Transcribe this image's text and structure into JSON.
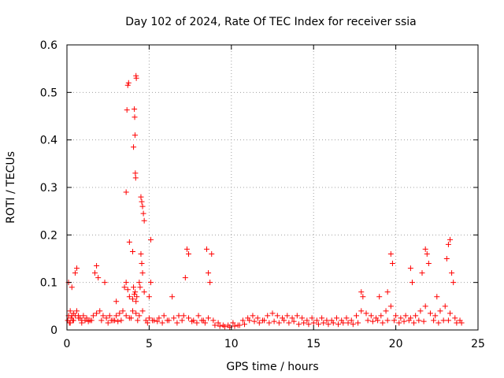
{
  "chart_data": {
    "type": "scatter",
    "title": "Day 102 of 2024, Rate Of TEC Index for receiver ssia",
    "xlabel": "GPS time / hours",
    "ylabel": "ROTI / TECUs",
    "xlim": [
      0,
      25
    ],
    "ylim": [
      0,
      0.6
    ],
    "x_ticks": [
      0,
      5,
      10,
      15,
      20,
      25
    ],
    "x_tick_labels": [
      "0",
      "5",
      "10",
      "15",
      "20",
      "25"
    ],
    "y_ticks": [
      0,
      0.1,
      0.2,
      0.3,
      0.4,
      0.5,
      0.6
    ],
    "y_tick_labels": [
      "0",
      "0.1",
      "0.2",
      "0.3",
      "0.4",
      "0.5",
      "0.6"
    ],
    "grid": true,
    "marker": "+",
    "color": "#ff0000",
    "x": [
      0.05,
      0.1,
      0.15,
      0.2,
      0.25,
      0.3,
      0.35,
      0.4,
      0.5,
      0.6,
      0.7,
      0.8,
      0.9,
      1.0,
      1.2,
      1.4,
      1.6,
      1.8,
      2.0,
      2.2,
      2.4,
      2.6,
      2.8,
      3.0,
      3.2,
      3.4,
      3.6,
      3.8,
      4.0,
      4.2,
      4.4,
      4.6,
      4.8,
      5.0,
      5.3,
      5.6,
      5.9,
      6.2,
      6.5,
      6.8,
      7.1,
      7.4,
      7.7,
      8.0,
      8.3,
      8.6,
      8.9,
      9.2,
      9.5,
      9.8,
      10.1,
      10.4,
      10.7,
      11.0,
      11.3,
      11.6,
      11.9,
      12.2,
      12.5,
      12.8,
      13.1,
      13.4,
      13.7,
      14.0,
      14.3,
      14.6,
      14.9,
      15.2,
      15.5,
      15.8,
      16.1,
      16.4,
      16.7,
      17.0,
      17.3,
      17.6,
      17.9,
      18.2,
      18.5,
      18.8,
      19.1,
      19.4,
      19.7,
      20.0,
      20.3,
      20.6,
      20.9,
      21.2,
      21.5,
      21.8,
      22.1,
      22.4,
      22.7,
      23.0,
      23.3,
      23.6,
      23.9,
      0.1,
      0.3,
      0.5,
      0.6,
      1.7,
      1.8,
      1.9,
      2.3,
      3.0,
      3.5,
      3.6,
      3.7,
      3.8,
      4.0,
      4.05,
      4.1,
      4.15,
      4.2,
      4.25,
      4.4,
      4.45,
      4.5,
      4.55,
      4.6,
      4.7,
      5.0,
      5.1,
      6.4,
      7.2,
      7.3,
      7.4,
      8.5,
      8.6,
      8.7,
      8.8,
      17.9,
      18.0,
      19.0,
      19.5,
      19.7,
      19.8,
      20.9,
      21.0,
      21.6,
      21.8,
      21.9,
      22.0,
      22.5,
      23.1,
      23.2,
      23.3,
      23.4,
      23.5,
      3.6,
      3.65,
      3.7,
      3.75,
      3.8,
      4.0,
      4.05,
      4.1,
      4.12,
      4.14,
      4.16,
      4.18,
      4.2,
      4.22,
      4.5,
      4.55,
      4.6,
      4.65,
      4.7,
      5.1,
      0.2,
      0.4,
      0.7,
      0.9,
      1.1,
      1.3,
      1.5,
      2.1,
      2.5,
      2.7,
      2.9,
      3.1,
      3.3,
      3.9,
      4.3,
      4.9,
      5.2,
      5.5,
      5.8,
      6.1,
      6.7,
      7.0,
      7.6,
      7.9,
      8.2,
      8.4,
      9.0,
      9.3,
      9.6,
      9.9,
      10.2,
      10.5,
      10.8,
      11.1,
      11.4,
      11.7,
      12.0,
      12.3,
      12.6,
      12.9,
      13.2,
      13.5,
      13.8,
      14.1,
      14.4,
      14.7,
      15.0,
      15.3,
      15.6,
      15.9,
      16.2,
      16.5,
      16.8,
      17.1,
      17.4,
      17.7,
      18.3,
      18.6,
      18.9,
      19.2,
      19.5,
      19.9,
      20.2,
      20.5,
      20.8,
      21.1,
      21.4,
      21.7,
      22.3,
      22.6,
      22.9,
      23.2,
      23.7,
      24.0
    ],
    "y": [
      0.02,
      0.03,
      0.015,
      0.04,
      0.025,
      0.03,
      0.02,
      0.035,
      0.03,
      0.04,
      0.03,
      0.025,
      0.02,
      0.03,
      0.025,
      0.02,
      0.03,
      0.035,
      0.04,
      0.03,
      0.025,
      0.03,
      0.02,
      0.03,
      0.035,
      0.04,
      0.03,
      0.025,
      0.04,
      0.035,
      0.03,
      0.04,
      0.02,
      0.025,
      0.02,
      0.025,
      0.03,
      0.02,
      0.025,
      0.03,
      0.03,
      0.025,
      0.02,
      0.03,
      0.02,
      0.025,
      0.02,
      0.015,
      0.01,
      0.01,
      0.015,
      0.01,
      0.02,
      0.025,
      0.03,
      0.025,
      0.02,
      0.03,
      0.035,
      0.03,
      0.025,
      0.03,
      0.025,
      0.03,
      0.025,
      0.02,
      0.025,
      0.02,
      0.025,
      0.02,
      0.02,
      0.025,
      0.02,
      0.025,
      0.02,
      0.03,
      0.04,
      0.035,
      0.03,
      0.025,
      0.03,
      0.04,
      0.05,
      0.03,
      0.025,
      0.03,
      0.025,
      0.03,
      0.04,
      0.05,
      0.035,
      0.03,
      0.04,
      0.05,
      0.035,
      0.025,
      0.02,
      0.1,
      0.09,
      0.12,
      0.13,
      0.12,
      0.135,
      0.11,
      0.1,
      0.06,
      0.09,
      0.1,
      0.085,
      0.07,
      0.065,
      0.09,
      0.075,
      0.08,
      0.06,
      0.07,
      0.1,
      0.09,
      0.16,
      0.14,
      0.12,
      0.08,
      0.07,
      0.1,
      0.07,
      0.11,
      0.17,
      0.16,
      0.17,
      0.12,
      0.1,
      0.16,
      0.08,
      0.07,
      0.07,
      0.08,
      0.16,
      0.14,
      0.13,
      0.1,
      0.12,
      0.17,
      0.16,
      0.14,
      0.07,
      0.15,
      0.18,
      0.19,
      0.12,
      0.1,
      0.29,
      0.463,
      0.515,
      0.52,
      0.185,
      0.165,
      0.385,
      0.465,
      0.448,
      0.41,
      0.33,
      0.32,
      0.535,
      0.53,
      0.28,
      0.27,
      0.26,
      0.245,
      0.23,
      0.19,
      0.015,
      0.02,
      0.025,
      0.015,
      0.02,
      0.018,
      0.02,
      0.02,
      0.015,
      0.02,
      0.02,
      0.018,
      0.02,
      0.025,
      0.02,
      0.015,
      0.02,
      0.018,
      0.015,
      0.02,
      0.015,
      0.02,
      0.018,
      0.015,
      0.02,
      0.015,
      0.01,
      0.008,
      0.007,
      0.006,
      0.008,
      0.01,
      0.012,
      0.02,
      0.018,
      0.015,
      0.02,
      0.015,
      0.018,
      0.015,
      0.02,
      0.015,
      0.018,
      0.012,
      0.015,
      0.012,
      0.015,
      0.012,
      0.015,
      0.012,
      0.015,
      0.012,
      0.015,
      0.015,
      0.012,
      0.015,
      0.02,
      0.018,
      0.02,
      0.015,
      0.02,
      0.02,
      0.015,
      0.018,
      0.02,
      0.015,
      0.02,
      0.018,
      0.02,
      0.015,
      0.02,
      0.02,
      0.015,
      0.015
    ]
  }
}
